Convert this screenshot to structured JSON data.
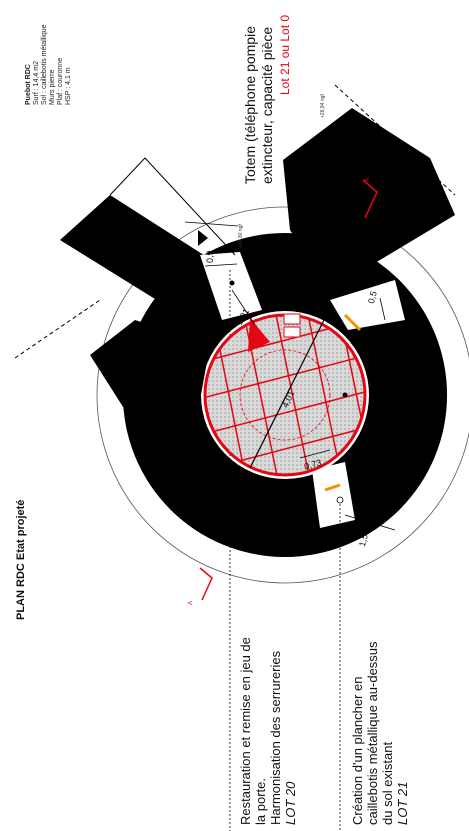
{
  "title": "PLAN RDC Etat projeté",
  "notes": {
    "restauration": [
      "Restauration et remise en jeu de",
      "la porte.",
      "Harmonisation des serrureries"
    ],
    "restauration_lot": "LOT 20",
    "creation": [
      "Création d'un plancher en",
      "caillebotis métallique au-dessus",
      "du sol existant"
    ],
    "creation_lot": "LOT 21",
    "totem": [
      "Totem (téléphone pompie",
      "extincteur, capacité pièce"
    ],
    "totem_lot": "Lot 21 ou Lot 0"
  },
  "room_info": {
    "name": "Puebot RDC",
    "lines": [
      "Surf : 14,4 m2",
      "Sol : caillebotis métallique",
      "Murs pierre",
      "Plaf : couronne",
      "HSP : 4,1 m"
    ]
  },
  "dimensions": [
    "0,9",
    "1,01",
    "4,01",
    "0,73",
    "1,5",
    "0,5"
  ],
  "levels": [
    "+26,94 ngf",
    "+26,30 ngf"
  ],
  "markers": [
    "A",
    "A"
  ],
  "colors": {
    "wall": "#000000",
    "hatch": "#e30613",
    "accent": "#f39200"
  }
}
